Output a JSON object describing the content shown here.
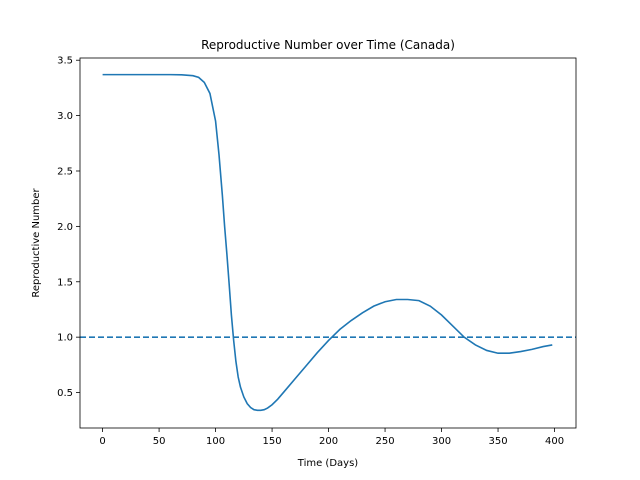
{
  "chart_data": {
    "type": "line",
    "title": "Reproductive Number over Time (Canada)",
    "xlabel": "Time (Days)",
    "ylabel": "Reproductive Number",
    "xlim": [
      -20,
      419
    ],
    "ylim": [
      0.18,
      3.52
    ],
    "xticks": [
      0,
      50,
      100,
      150,
      200,
      250,
      300,
      350,
      400
    ],
    "yticks": [
      0.5,
      1.0,
      1.5,
      2.0,
      2.5,
      3.0,
      3.5
    ],
    "ytick_labels": [
      "0.5",
      "1.0",
      "1.5",
      "2.0",
      "2.5",
      "3.0",
      "3.5"
    ],
    "grid": false,
    "series": [
      {
        "color": "#1f77b4",
        "style": "solid",
        "x": [
          0,
          20,
          40,
          60,
          70,
          80,
          85,
          90,
          95,
          100,
          103,
          106,
          108,
          110,
          112,
          114,
          116,
          118,
          120,
          122,
          125,
          128,
          131,
          134,
          137,
          140,
          143,
          146,
          150,
          155,
          160,
          170,
          180,
          190,
          200,
          210,
          220,
          230,
          240,
          250,
          260,
          270,
          280,
          290,
          300,
          310,
          320,
          330,
          340,
          350,
          360,
          370,
          380,
          390,
          398
        ],
        "values": [
          3.37,
          3.37,
          3.37,
          3.37,
          3.368,
          3.36,
          3.345,
          3.3,
          3.2,
          2.95,
          2.65,
          2.28,
          2.0,
          1.75,
          1.48,
          1.2,
          0.97,
          0.78,
          0.64,
          0.55,
          0.46,
          0.4,
          0.365,
          0.345,
          0.34,
          0.34,
          0.345,
          0.36,
          0.39,
          0.44,
          0.5,
          0.62,
          0.74,
          0.86,
          0.97,
          1.07,
          1.15,
          1.22,
          1.28,
          1.32,
          1.34,
          1.34,
          1.33,
          1.28,
          1.2,
          1.1,
          1.0,
          0.93,
          0.88,
          0.855,
          0.855,
          0.87,
          0.89,
          0.915,
          0.93
        ]
      },
      {
        "color": "#1f77b4",
        "style": "dashed",
        "x": [
          -20,
          419
        ],
        "values": [
          1.0,
          1.0
        ]
      }
    ]
  }
}
